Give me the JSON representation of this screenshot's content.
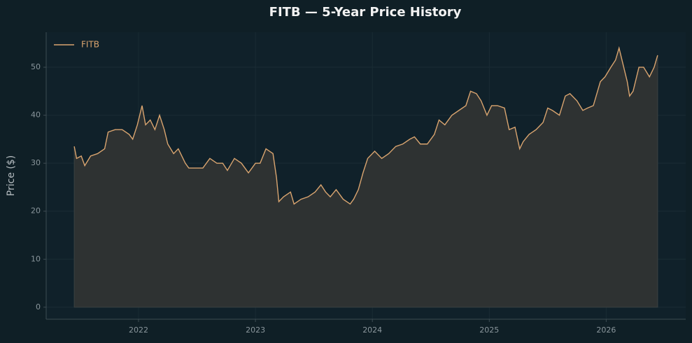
{
  "chart_data": {
    "type": "line",
    "title": "FITB — 5-Year Price History",
    "ylabel": "Price ($)",
    "x": [
      2021.45,
      2021.47,
      2021.51,
      2021.54,
      2021.59,
      2021.65,
      2021.71,
      2021.74,
      2021.8,
      2021.86,
      2021.92,
      2021.95,
      2021.99,
      2022.03,
      2022.06,
      2022.1,
      2022.14,
      2022.18,
      2022.22,
      2022.25,
      2022.3,
      2022.34,
      2022.4,
      2022.43,
      2022.49,
      2022.55,
      2022.61,
      2022.67,
      2022.72,
      2022.76,
      2022.82,
      2022.88,
      2022.94,
      2023.0,
      2023.04,
      2023.09,
      2023.15,
      2023.18,
      2023.2,
      2023.24,
      2023.3,
      2023.33,
      2023.39,
      2023.45,
      2023.51,
      2023.56,
      2023.6,
      2023.64,
      2023.69,
      2023.75,
      2023.81,
      2023.84,
      2023.88,
      2023.92,
      2023.96,
      2024.02,
      2024.08,
      2024.14,
      2024.2,
      2024.26,
      2024.32,
      2024.36,
      2024.41,
      2024.47,
      2024.53,
      2024.57,
      2024.62,
      2024.68,
      2024.74,
      2024.8,
      2024.84,
      2024.89,
      2024.93,
      2024.98,
      2025.02,
      2025.07,
      2025.13,
      2025.17,
      2025.22,
      2025.26,
      2025.29,
      2025.34,
      2025.4,
      2025.46,
      2025.5,
      2025.54,
      2025.6,
      2025.65,
      2025.69,
      2025.75,
      2025.8,
      2025.84,
      2025.89,
      2025.95,
      2025.99,
      2026.04,
      2026.08,
      2026.11,
      2026.14,
      2026.18,
      2026.2,
      2026.23,
      2026.28,
      2026.32,
      2026.37,
      2026.41,
      2026.44
    ],
    "series": [
      {
        "name": "FITB",
        "color": "#d9a46f",
        "values": [
          33.5,
          31,
          31.5,
          29.5,
          31.5,
          32,
          33,
          36.5,
          37,
          37,
          36,
          35,
          38,
          42,
          38,
          39,
          37,
          40,
          37,
          34,
          32,
          33,
          30,
          29,
          29,
          29,
          31,
          30,
          30,
          28.5,
          31,
          30,
          28,
          30,
          30,
          33,
          32,
          27,
          22,
          23,
          24,
          21.5,
          22.5,
          23,
          24,
          25.5,
          24,
          23,
          24.5,
          22.5,
          21.5,
          22.5,
          24.5,
          28,
          31,
          32.5,
          31,
          32,
          33.5,
          34,
          35,
          35.5,
          34,
          34,
          36,
          39,
          38,
          40,
          41,
          42,
          45,
          44.5,
          43,
          40,
          42,
          42,
          41.5,
          37,
          37.5,
          33,
          34.5,
          36,
          37,
          38.5,
          41.5,
          41,
          40,
          44,
          44.5,
          43,
          41,
          41.5,
          42,
          47,
          48,
          50,
          51.5,
          54,
          51,
          47,
          44,
          45,
          50,
          50,
          48,
          50,
          52.5
        ]
      }
    ],
    "xlim": [
      2021.21,
      2026.68
    ],
    "xticks": [
      2022,
      2023,
      2024,
      2025,
      2026
    ],
    "ylim": [
      -2.5,
      57.3
    ],
    "yticks": [
      0,
      10,
      20,
      30,
      40,
      50
    ],
    "grid": true,
    "legend": "upper left",
    "area_fill": "#2e3232"
  }
}
